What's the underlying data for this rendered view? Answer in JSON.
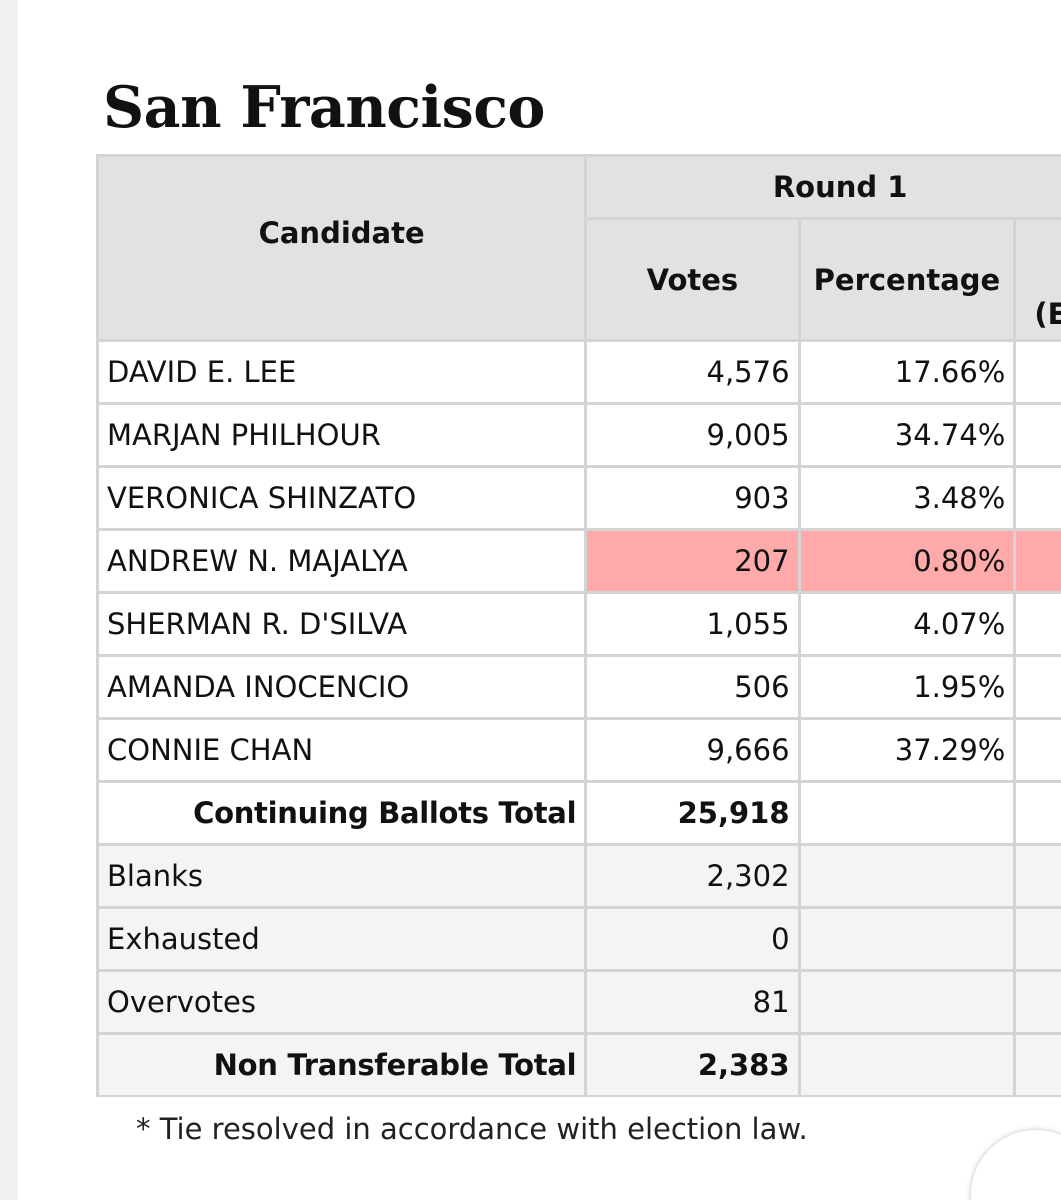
{
  "title": "San Francisco",
  "table": {
    "candidate_header": "Candidate",
    "round_header": "Round 1",
    "votes_header": "Votes",
    "percentage_header": "Percentage",
    "extra_header": "(E",
    "candidates": [
      {
        "name": "DAVID E. LEE",
        "votes": "4,576",
        "percentage": "17.66%"
      },
      {
        "name": "MARJAN PHILHOUR",
        "votes": "9,005",
        "percentage": "34.74%"
      },
      {
        "name": "VERONICA SHINZATO",
        "votes": "903",
        "percentage": "3.48%"
      },
      {
        "name": "ANDREW N. MAJALYA",
        "votes": "207",
        "percentage": "0.80%"
      },
      {
        "name": "SHERMAN R. D'SILVA",
        "votes": "1,055",
        "percentage": "4.07%"
      },
      {
        "name": "AMANDA INOCENCIO",
        "votes": "506",
        "percentage": "1.95%"
      },
      {
        "name": "CONNIE CHAN",
        "votes": "9,666",
        "percentage": "37.29%"
      }
    ],
    "continuing_total": {
      "label": "Continuing Ballots Total",
      "votes": "25,918"
    },
    "non_transferable": [
      {
        "name": "Blanks",
        "votes": "2,302"
      },
      {
        "name": "Exhausted",
        "votes": "0"
      },
      {
        "name": "Overvotes",
        "votes": "81"
      }
    ],
    "non_transferable_total": {
      "label": "Non Transferable Total",
      "votes": "2,383"
    }
  },
  "footnote": "* Tie resolved in accordance with election law.",
  "colors": {
    "highlight": "#ffaaaa",
    "header_bg": "#e2e2e2",
    "border": "#d4d4d4"
  }
}
